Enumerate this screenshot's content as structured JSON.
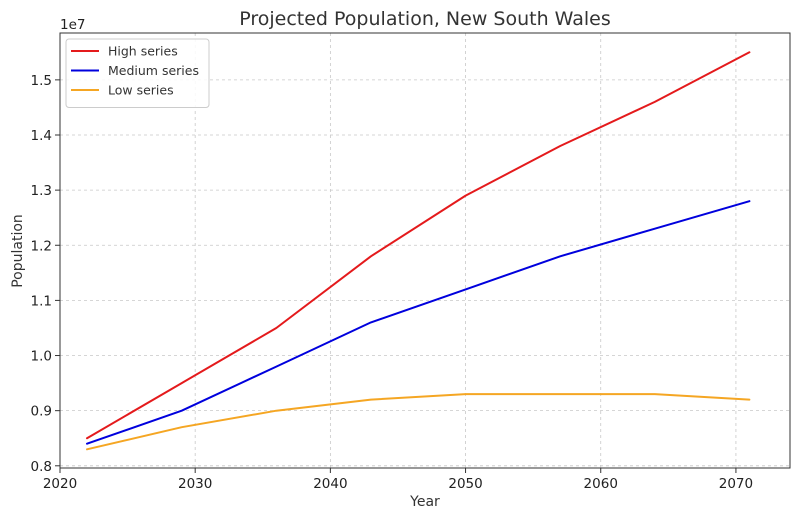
{
  "chart_data": {
    "type": "line",
    "title": "Projected Population, New South Wales",
    "xlabel": "Year",
    "ylabel": "Population",
    "offset_text": "1e7",
    "x": [
      2022,
      2029,
      2036,
      2043,
      2050,
      2057,
      2064,
      2071
    ],
    "series": [
      {
        "name": "High series",
        "color": "#e41a1c",
        "values": [
          8500000,
          9500000,
          10500000,
          11800000,
          12900000,
          13800000,
          14600000,
          15500000
        ]
      },
      {
        "name": "Medium series",
        "color": "#0000dd",
        "values": [
          8400000,
          9000000,
          9800000,
          10600000,
          11200000,
          11800000,
          12300000,
          12800000
        ]
      },
      {
        "name": "Low series",
        "color": "#f5a623",
        "values": [
          8300000,
          8700000,
          9000000,
          9200000,
          9300000,
          9300000,
          9300000,
          9200000
        ]
      }
    ],
    "xlim": [
      2020,
      2074
    ],
    "ylim": [
      7960000,
      15850000
    ],
    "xticks": [
      2020,
      2030,
      2040,
      2050,
      2060,
      2070
    ],
    "xtick_labels": [
      "2020",
      "2030",
      "2040",
      "2050",
      "2060",
      "2070"
    ],
    "yticks": [
      8000000,
      9000000,
      10000000,
      11000000,
      12000000,
      13000000,
      14000000,
      15000000
    ],
    "ytick_labels": [
      "0.8",
      "0.9",
      "1.0",
      "1.1",
      "1.2",
      "1.3",
      "1.4",
      "1.5"
    ],
    "grid": true,
    "legend_position": "top-left"
  }
}
